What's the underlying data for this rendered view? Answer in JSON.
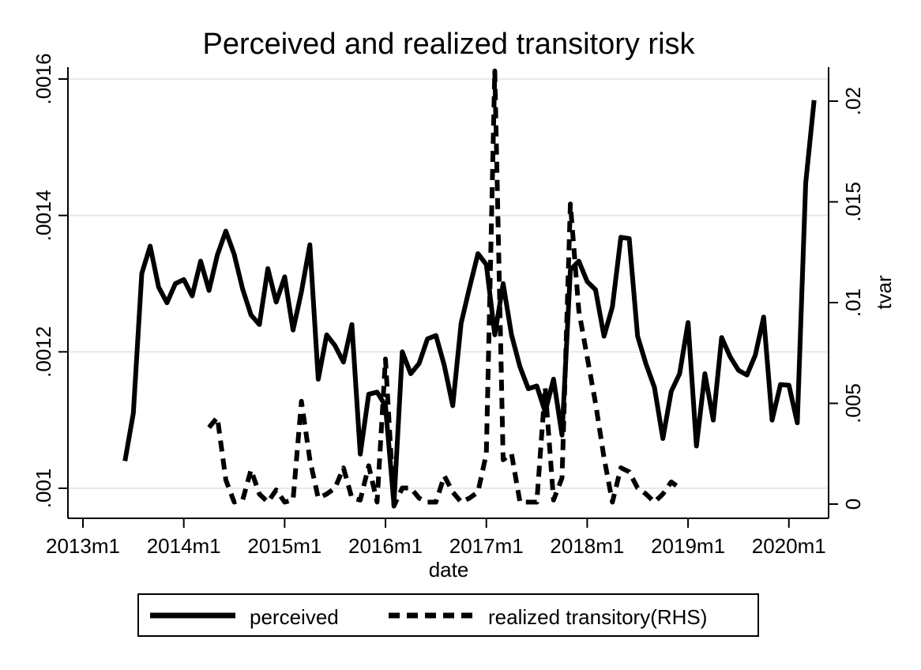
{
  "chart_data": {
    "type": "line",
    "title": "Perceived and realized transitory risk",
    "xlabel": "date",
    "ylabel_left": "",
    "ylabel_right": "tvar",
    "x_ticks": [
      "2013m1",
      "2014m1",
      "2015m1",
      "2016m1",
      "2017m1",
      "2018m1",
      "2019m1",
      "2020m1"
    ],
    "y_left_ticks": [
      ".001",
      ".0012",
      ".0014",
      ".0016"
    ],
    "y_right_ticks": [
      "0",
      ".005",
      ".01",
      ".015",
      ".02"
    ],
    "y_left_range": [
      0.000962,
      0.00162
    ],
    "y_right_range": [
      -0.00075,
      0.0215
    ],
    "grid": true,
    "legend_position": "bottom",
    "legend": [
      "perceived",
      "realized transitory(RHS)"
    ],
    "series": [
      {
        "name": "perceived",
        "axis": "left",
        "style": "solid",
        "x": [
          "2013m6",
          "2013m7",
          "2013m8",
          "2013m9",
          "2013m10",
          "2013m11",
          "2013m12",
          "2014m1",
          "2014m2",
          "2014m3",
          "2014m4",
          "2014m5",
          "2014m6",
          "2014m7",
          "2014m8",
          "2014m9",
          "2014m10",
          "2014m11",
          "2014m12",
          "2015m1",
          "2015m2",
          "2015m3",
          "2015m4",
          "2015m5",
          "2015m6",
          "2015m7",
          "2015m8",
          "2015m9",
          "2015m10",
          "2015m11",
          "2015m12",
          "2016m1",
          "2016m2",
          "2016m3",
          "2016m4",
          "2016m5",
          "2016m6",
          "2016m7",
          "2016m8",
          "2016m9",
          "2016m10",
          "2016m11",
          "2016m12",
          "2017m1",
          "2017m2",
          "2017m3",
          "2017m4",
          "2017m5",
          "2017m6",
          "2017m7",
          "2017m8",
          "2017m9",
          "2017m10",
          "2017m11",
          "2017m12",
          "2018m1",
          "2018m2",
          "2018m3",
          "2018m4",
          "2018m5",
          "2018m6",
          "2018m7",
          "2018m8",
          "2018m9",
          "2018m10",
          "2018m11",
          "2018m12",
          "2019m1",
          "2019m2",
          "2019m3",
          "2019m4",
          "2019m5",
          "2019m6",
          "2019m7",
          "2019m8",
          "2019m9",
          "2019m10",
          "2019m11",
          "2019m12",
          "2020m1",
          "2020m2",
          "2020m3",
          "2020m4"
        ],
        "values": [
          0.00104,
          0.00111,
          0.001315,
          0.001355,
          0.001295,
          0.001272,
          0.0013,
          0.001306,
          0.001282,
          0.001333,
          0.00129,
          0.001342,
          0.001377,
          0.001343,
          0.001292,
          0.001254,
          0.00124,
          0.001322,
          0.001273,
          0.00131,
          0.001232,
          0.001288,
          0.001357,
          0.00116,
          0.001225,
          0.001209,
          0.001185,
          0.00124,
          0.00105,
          0.001138,
          0.001141,
          0.001121,
          0.000977,
          0.0012,
          0.001168,
          0.001183,
          0.001219,
          0.001224,
          0.00118,
          0.001121,
          0.001242,
          0.001294,
          0.001344,
          0.001328,
          0.001225,
          0.0013,
          0.001225,
          0.001178,
          0.001146,
          0.00115,
          0.001112,
          0.00116,
          0.001078,
          0.00132,
          0.001333,
          0.001303,
          0.001291,
          0.001223,
          0.001266,
          0.001368,
          0.001366,
          0.001223,
          0.001182,
          0.001148,
          0.001073,
          0.001142,
          0.001168,
          0.001243,
          0.001062,
          0.001168,
          0.0011,
          0.001221,
          0.001193,
          0.001173,
          0.001166,
          0.001195,
          0.001251,
          0.0011,
          0.001152,
          0.001151,
          0.001096,
          0.001447,
          0.001569
        ]
      },
      {
        "name": "realized transitory(RHS)",
        "axis": "right",
        "style": "dashed",
        "x": [
          "2014m4",
          "2014m5",
          "2014m6",
          "2014m7",
          "2014m8",
          "2014m9",
          "2014m10",
          "2014m11",
          "2014m12",
          "2015m1",
          "2015m2",
          "2015m3",
          "2015m4",
          "2015m5",
          "2015m6",
          "2015m7",
          "2015m8",
          "2015m9",
          "2015m10",
          "2015m11",
          "2015m12",
          "2016m1",
          "2016m2",
          "2016m3",
          "2016m4",
          "2016m5",
          "2016m6",
          "2016m7",
          "2016m8",
          "2016m9",
          "2016m10",
          "2016m11",
          "2016m12",
          "2017m1",
          "2017m2",
          "2017m3",
          "2017m4",
          "2017m5",
          "2017m6",
          "2017m7",
          "2017m8",
          "2017m9",
          "2017m10",
          "2017m11",
          "2017m12",
          "2018m1",
          "2018m2",
          "2018m3",
          "2018m4",
          "2018m5",
          "2018m6",
          "2018m7",
          "2018m8",
          "2018m9",
          "2018m10",
          "2018m11",
          "2018m12"
        ],
        "values": [
          0.0038,
          0.0043,
          0.0012,
          0.0001,
          0.0002,
          0.0017,
          0.0005,
          0.0001,
          0.0007,
          0.0001,
          0.0002,
          0.0051,
          0.0022,
          0.0003,
          0.0005,
          0.0008,
          0.0018,
          0.0003,
          0.0002,
          0.0019,
          0.0001,
          0.0072,
          -0.0001,
          0.0008,
          0.0008,
          0.0003,
          0.0001,
          0.0001,
          0.0014,
          0.0006,
          0.0001,
          0.0003,
          0.0006,
          0.0025,
          0.0215,
          0.0022,
          0.0025,
          0.0001,
          0.0001,
          0.0001,
          0.0058,
          0.0002,
          0.0013,
          0.0149,
          0.0096,
          0.0073,
          0.005,
          0.0023,
          0.0001,
          0.0018,
          0.0016,
          0.0008,
          0.0005,
          0.0001,
          0.0005,
          0.0011,
          0.0008
        ]
      }
    ]
  }
}
